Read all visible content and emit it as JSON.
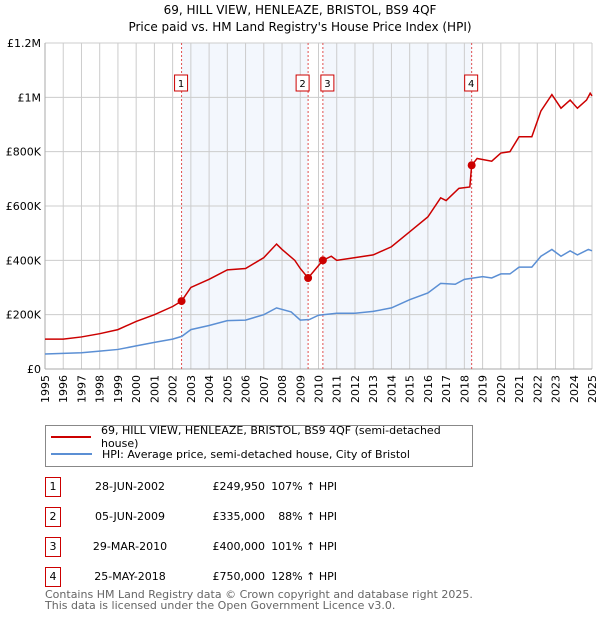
{
  "chart_data": {
    "type": "line",
    "title": "69, HILL VIEW, HENLEAZE, BRISTOL, BS9 4QF",
    "subtitle": "Price paid vs. HM Land Registry's House Price Index (HPI)",
    "xlim": [
      1995,
      2025
    ],
    "ylim": [
      0,
      1200000
    ],
    "yticks": [
      {
        "v": 0,
        "label": "£0"
      },
      {
        "v": 200000,
        "label": "£200K"
      },
      {
        "v": 400000,
        "label": "£400K"
      },
      {
        "v": 600000,
        "label": "£600K"
      },
      {
        "v": 800000,
        "label": "£800K"
      },
      {
        "v": 1000000,
        "label": "£1M"
      },
      {
        "v": 1200000,
        "label": "£1.2M"
      }
    ],
    "xticks": [
      "1995",
      "1996",
      "1997",
      "1998",
      "1999",
      "2000",
      "2001",
      "2002",
      "2003",
      "2004",
      "2005",
      "2006",
      "2007",
      "2008",
      "2009",
      "2010",
      "2011",
      "2012",
      "2013",
      "2014",
      "2015",
      "2016",
      "2017",
      "2018",
      "2019",
      "2020",
      "2021",
      "2022",
      "2023",
      "2024",
      "2025"
    ],
    "grid": true,
    "series": [
      {
        "name": "69, HILL VIEW, HENLEAZE, BRISTOL, BS9 4QF (semi-detached house)",
        "color": "#cc0000",
        "x": [
          1995,
          1996,
          1997,
          1998,
          1999,
          2000,
          2001,
          2002,
          2002.49,
          2003,
          2004,
          2005,
          2006,
          2007,
          2007.7,
          2008,
          2008.7,
          2009,
          2009.43,
          2010.24,
          2010.7,
          2011,
          2012,
          2013,
          2014,
          2015,
          2016,
          2016.7,
          2017,
          2017.7,
          2018.3,
          2018.4,
          2018.7,
          2019.5,
          2020,
          2020.5,
          2021,
          2021.7,
          2022.2,
          2022.8,
          2023.3,
          2023.8,
          2024.2,
          2024.7,
          2024.9,
          2025
        ],
        "y": [
          110000,
          110000,
          118000,
          130000,
          145000,
          175000,
          200000,
          230000,
          249950,
          300000,
          330000,
          365000,
          370000,
          410000,
          460000,
          440000,
          400000,
          370000,
          335000,
          400000,
          415000,
          400000,
          410000,
          420000,
          450000,
          505000,
          560000,
          630000,
          620000,
          665000,
          670000,
          750000,
          775000,
          765000,
          795000,
          800000,
          855000,
          855000,
          950000,
          1010000,
          960000,
          990000,
          960000,
          990000,
          1015000,
          1005000
        ]
      },
      {
        "name": "HPI: Average price, semi-detached house, City of Bristol",
        "color": "#5b8fd4",
        "x": [
          1995,
          1997,
          1998,
          1999,
          2000,
          2001,
          2002,
          2002.5,
          2003,
          2004,
          2005,
          2006,
          2007,
          2007.7,
          2008.5,
          2009,
          2009.5,
          2010,
          2011,
          2012,
          2013,
          2014,
          2015,
          2016,
          2016.7,
          2017.5,
          2018,
          2019,
          2019.5,
          2020,
          2020.5,
          2021,
          2021.7,
          2022.2,
          2022.8,
          2023.3,
          2023.8,
          2024.2,
          2024.8,
          2025
        ],
        "y": [
          55000,
          60000,
          66000,
          72000,
          85000,
          98000,
          110000,
          120000,
          145000,
          160000,
          178000,
          180000,
          200000,
          225000,
          210000,
          180000,
          182000,
          198000,
          205000,
          205000,
          212000,
          225000,
          255000,
          280000,
          315000,
          312000,
          330000,
          340000,
          335000,
          350000,
          350000,
          375000,
          375000,
          415000,
          440000,
          415000,
          435000,
          420000,
          440000,
          435000
        ]
      }
    ],
    "legend": "below",
    "sales": [
      {
        "id": "1",
        "x": 2002.49,
        "date": "28-JUN-2002",
        "price": 249950,
        "price_label": "£249,950",
        "hpi": "107% ↑ HPI"
      },
      {
        "id": "2",
        "x": 2009.43,
        "date": "05-JUN-2009",
        "price": 335000,
        "price_label": "£335,000",
        "hpi": "88% ↑ HPI"
      },
      {
        "id": "3",
        "x": 2010.24,
        "date": "29-MAR-2010",
        "price": 400000,
        "price_label": "£400,000",
        "hpi": "101% ↑ HPI"
      },
      {
        "id": "4",
        "x": 2018.4,
        "date": "25-MAY-2018",
        "price": 750000,
        "price_label": "£750,000",
        "hpi": "128% ↑ HPI"
      }
    ],
    "shaded": [
      [
        2002.49,
        2009.43
      ],
      [
        2010.24,
        2018.4
      ]
    ]
  },
  "footer": {
    "line1": "Contains HM Land Registry data © Crown copyright and database right 2025.",
    "line2": "This data is licensed under the Open Government Licence v3.0."
  }
}
